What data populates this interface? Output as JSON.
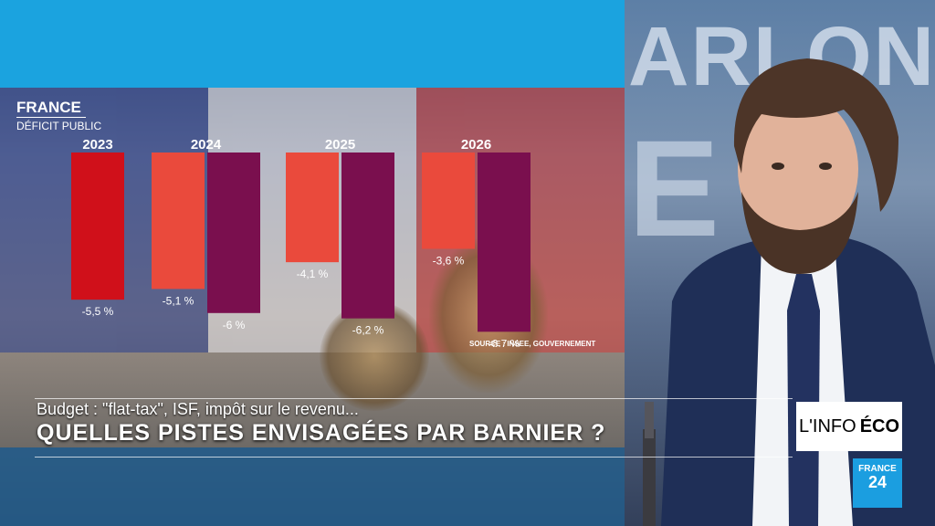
{
  "graphic": {
    "country": "FRANCE",
    "metric": "DÉFICIT PUBLIC",
    "source": "SOURCE : INSEE, GOUVERNEMENT"
  },
  "chart_data": {
    "type": "bar",
    "title": "DÉFICIT PUBLIC",
    "categories": [
      "2023",
      "2024",
      "2025",
      "2026"
    ],
    "series": [
      {
        "color": "#ea4a3c",
        "values": [
          -5.5,
          -5.1,
          -4.1,
          -3.6
        ],
        "labels": [
          "-5,5 %",
          "-5,1 %",
          "-4,1 %",
          "-3,6 %"
        ]
      },
      {
        "color": "#7a0f4e",
        "values": [
          null,
          -6,
          -6.2,
          -6.7
        ],
        "labels": [
          "",
          "-6 %",
          "-6,2 %",
          "-6,7 %"
        ]
      }
    ],
    "first_bar_color": "#d0101a",
    "ylim": [
      -7,
      0
    ]
  },
  "lower_third": {
    "line1": "Budget : \"flat-tax\", ISF, impôt sur le revenu...",
    "line2": "QUELLES PISTES ENVISAGÉES PAR BARNIER ?"
  },
  "studio": {
    "bg_word1": "ARLONS",
    "bg_word2": "E",
    "show_tag_light": "L'INFO",
    "show_tag_bold": "ÉCO",
    "channel_line1": "FRANCE",
    "channel_line2": "24"
  }
}
